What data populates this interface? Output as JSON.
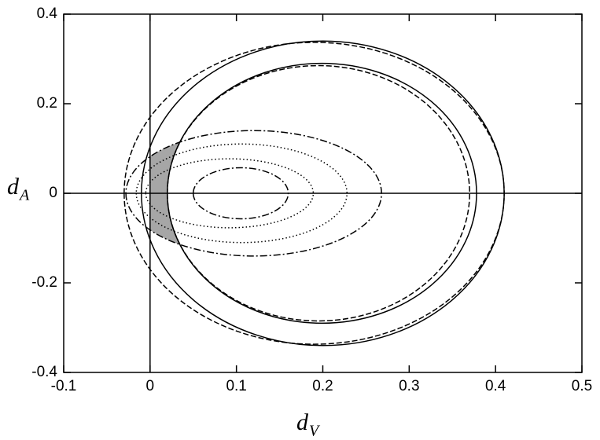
{
  "chart_data": {
    "type": "ellipse",
    "xlabel": "d",
    "xlabel_sub": "V",
    "ylabel": "d",
    "ylabel_sub": "A",
    "xlim": [
      -0.1,
      0.5
    ],
    "xticks": [
      -0.1,
      0,
      0.1,
      0.2,
      0.3,
      0.4,
      0.5
    ],
    "ylim": [
      -0.4,
      0.4
    ],
    "yticks": [
      -0.4,
      -0.2,
      0,
      0.2,
      0.4
    ],
    "zero_lines": true,
    "shade_color": "#a6a6a6",
    "series": [
      {
        "line": "solid",
        "color": "#000000",
        "cx": 0.2,
        "cy": 0,
        "rx": 0.21,
        "ry": 0.34
      },
      {
        "line": "dashed",
        "color": "#000000",
        "cx": 0.19,
        "cy": 0,
        "rx": 0.22,
        "ry": 0.337
      },
      {
        "line": "solid",
        "color": "#000000",
        "cx": 0.199,
        "cy": 0,
        "rx": 0.179,
        "ry": 0.29
      },
      {
        "line": "dashed",
        "color": "#000000",
        "cx": 0.195,
        "cy": 0,
        "rx": 0.175,
        "ry": 0.285
      },
      {
        "line": "dashdot",
        "color": "#000000",
        "cx": 0.12,
        "cy": 0,
        "rx": 0.148,
        "ry": 0.14
      },
      {
        "line": "dotted",
        "color": "#000000",
        "cx": 0.106,
        "cy": 0,
        "rx": 0.122,
        "ry": 0.11
      },
      {
        "line": "dotted",
        "color": "#000000",
        "cx": 0.092,
        "cy": 0,
        "rx": 0.097,
        "ry": 0.077
      },
      {
        "line": "dashdot",
        "color": "#000000",
        "cx": 0.105,
        "cy": 0,
        "rx": 0.055,
        "ry": 0.057
      }
    ]
  }
}
